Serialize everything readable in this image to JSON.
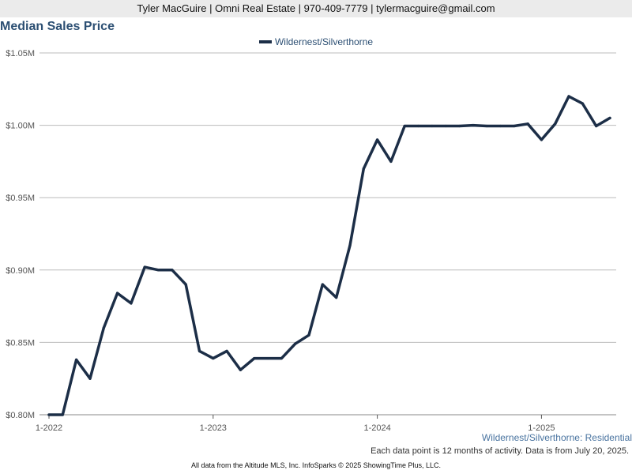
{
  "header": {
    "contact": "Tyler MacGuire | Omni Real Estate | 970-409-7779 | tylermacguire@gmail.com"
  },
  "footer": {
    "series_label": "Wildernest/Silverthorne: Residential",
    "activity_note": "Each data point is 12 months of activity. Data is from July 20, 2025.",
    "source_note": "All data from the Altitude MLS, Inc. InfoSparks © 2025 ShowingTime Plus, LLC."
  },
  "colors": {
    "line": "#1c2e47",
    "title": "#2c4f73",
    "grid": "#bbbbbb",
    "header_bg": "#ebebeb"
  },
  "chart_data": {
    "type": "line",
    "title": "Median Sales Price",
    "ylim": [
      800000,
      1050000
    ],
    "y_ticks": [
      800000,
      850000,
      900000,
      950000,
      1000000,
      1050000
    ],
    "y_tick_labels": [
      "$0.80M",
      "$0.85M",
      "$0.90M",
      "$0.95M",
      "$1.00M",
      "$1.05M"
    ],
    "x_tick_labels": [
      "1-2022",
      "1-2023",
      "1-2024",
      "1-2025"
    ],
    "x": [
      "2022-01",
      "2022-02",
      "2022-03",
      "2022-04",
      "2022-05",
      "2022-06",
      "2022-07",
      "2022-08",
      "2022-09",
      "2022-10",
      "2022-11",
      "2022-12",
      "2023-01",
      "2023-02",
      "2023-03",
      "2023-04",
      "2023-05",
      "2023-06",
      "2023-07",
      "2023-08",
      "2023-09",
      "2023-10",
      "2023-11",
      "2023-12",
      "2024-01",
      "2024-02",
      "2024-03",
      "2024-04",
      "2024-05",
      "2024-06",
      "2024-07",
      "2024-08",
      "2024-09",
      "2024-10",
      "2024-11",
      "2024-12",
      "2025-01",
      "2025-02",
      "2025-03",
      "2025-04",
      "2025-05",
      "2025-06"
    ],
    "series": [
      {
        "name": "Wildernest/Silverthorne",
        "values": [
          800000,
          800000,
          838000,
          825000,
          860000,
          884000,
          877000,
          902000,
          900000,
          900000,
          890000,
          844000,
          839000,
          844000,
          831000,
          839000,
          839000,
          839000,
          849000,
          855000,
          890000,
          881000,
          917000,
          970000,
          990000,
          975000,
          999500,
          999500,
          999500,
          999500,
          999500,
          1000000,
          999500,
          999500,
          999500,
          1001000,
          990000,
          1001000,
          1020000,
          1015000,
          999500,
          1005000
        ]
      }
    ],
    "grid": true,
    "legend_position": "top-center"
  }
}
